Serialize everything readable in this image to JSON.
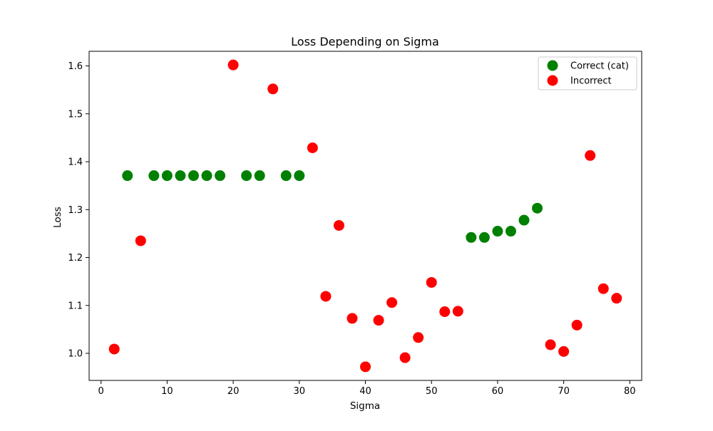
{
  "chart_data": {
    "type": "scatter",
    "title": "Loss Depending on Sigma",
    "xlabel": "Sigma",
    "ylabel": "Loss",
    "xlim": [
      -1.8,
      81.8
    ],
    "ylim": [
      0.9435,
      1.6305
    ],
    "xticks": [
      0,
      10,
      20,
      30,
      40,
      50,
      60,
      70,
      80
    ],
    "yticks": [
      1.0,
      1.1,
      1.2,
      1.3,
      1.4,
      1.5,
      1.6
    ],
    "grid": false,
    "legend_position": "top-right",
    "series": [
      {
        "name": "Correct (cat)",
        "color": "#008000",
        "points": [
          {
            "x": 4,
            "y": 1.371
          },
          {
            "x": 8,
            "y": 1.371
          },
          {
            "x": 10,
            "y": 1.371
          },
          {
            "x": 12,
            "y": 1.371
          },
          {
            "x": 14,
            "y": 1.371
          },
          {
            "x": 16,
            "y": 1.371
          },
          {
            "x": 18,
            "y": 1.371
          },
          {
            "x": 22,
            "y": 1.371
          },
          {
            "x": 24,
            "y": 1.371
          },
          {
            "x": 28,
            "y": 1.371
          },
          {
            "x": 30,
            "y": 1.371
          },
          {
            "x": 56,
            "y": 1.242
          },
          {
            "x": 58,
            "y": 1.242
          },
          {
            "x": 60,
            "y": 1.255
          },
          {
            "x": 62,
            "y": 1.255
          },
          {
            "x": 64,
            "y": 1.278
          },
          {
            "x": 66,
            "y": 1.303
          }
        ]
      },
      {
        "name": "Incorrect",
        "color": "#ff0000",
        "points": [
          {
            "x": 2,
            "y": 1.009
          },
          {
            "x": 6,
            "y": 1.235
          },
          {
            "x": 20,
            "y": 1.602
          },
          {
            "x": 26,
            "y": 1.552
          },
          {
            "x": 32,
            "y": 1.429
          },
          {
            "x": 34,
            "y": 1.119
          },
          {
            "x": 36,
            "y": 1.267
          },
          {
            "x": 38,
            "y": 1.073
          },
          {
            "x": 40,
            "y": 0.972
          },
          {
            "x": 42,
            "y": 1.069
          },
          {
            "x": 44,
            "y": 1.106
          },
          {
            "x": 46,
            "y": 0.991
          },
          {
            "x": 48,
            "y": 1.033
          },
          {
            "x": 50,
            "y": 1.148
          },
          {
            "x": 52,
            "y": 1.087
          },
          {
            "x": 54,
            "y": 1.088
          },
          {
            "x": 68,
            "y": 1.018
          },
          {
            "x": 70,
            "y": 1.004
          },
          {
            "x": 72,
            "y": 1.059
          },
          {
            "x": 74,
            "y": 1.413
          },
          {
            "x": 76,
            "y": 1.135
          },
          {
            "x": 78,
            "y": 1.115
          }
        ]
      }
    ]
  }
}
